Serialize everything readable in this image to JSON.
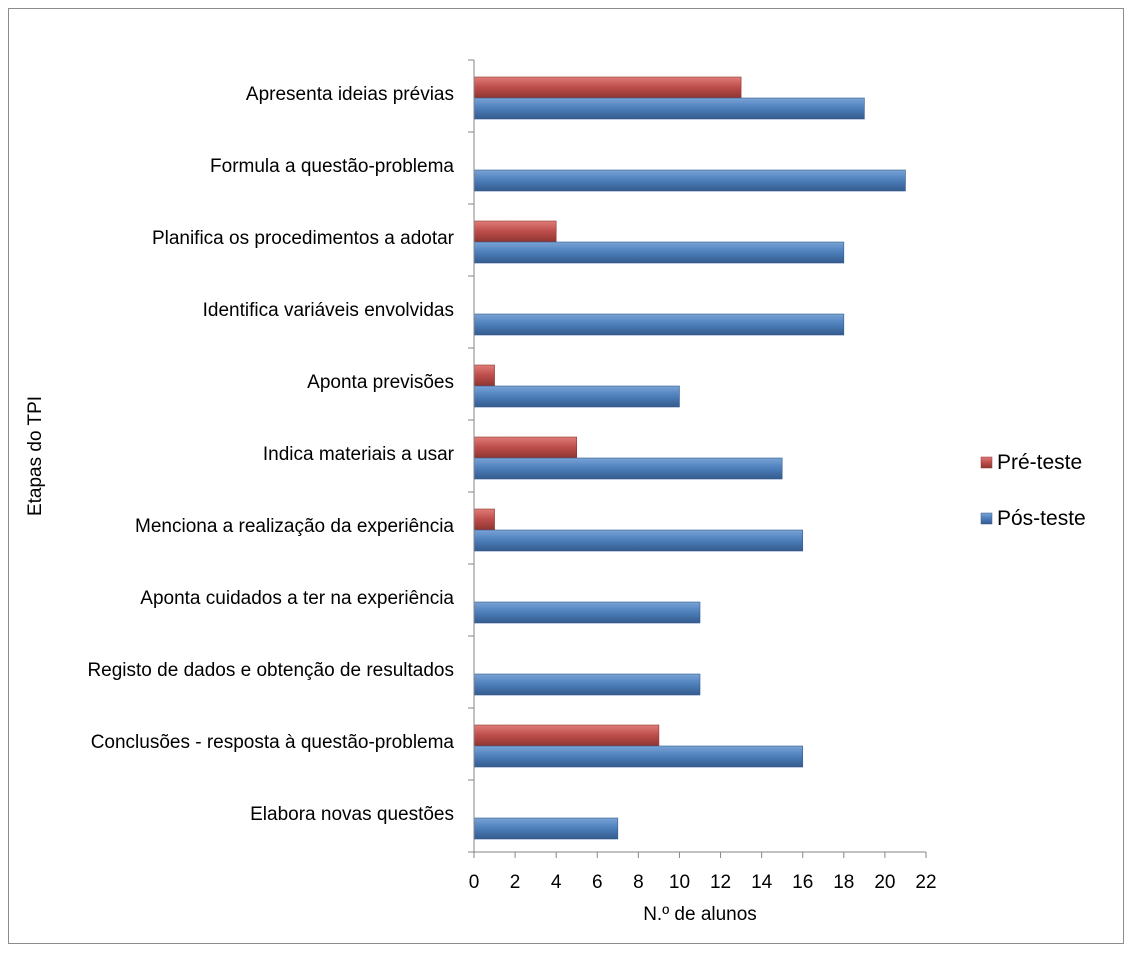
{
  "chart_data": {
    "type": "bar",
    "orientation": "horizontal",
    "categories": [
      "Apresenta ideias prévias",
      "Formula a questão-problema",
      "Planifica os procedimentos a adotar",
      "Identifica variáveis envolvidas",
      "Aponta previsões",
      "Indica materiais a usar",
      "Menciona a realização da experiência",
      "Aponta cuidados a ter na experiência",
      "Registo de dados e obtenção de resultados",
      "Conclusões - resposta à questão-problema",
      "Elabora novas questões"
    ],
    "series": [
      {
        "name": "Pré-teste",
        "color": "#c0504d",
        "values": [
          13,
          0,
          4,
          0,
          1,
          5,
          1,
          0,
          0,
          9,
          0
        ]
      },
      {
        "name": "Pós-teste",
        "color": "#4f81bd",
        "values": [
          19,
          21,
          18,
          18,
          10,
          15,
          16,
          11,
          11,
          16,
          7
        ]
      }
    ],
    "xlabel": "N.º de alunos",
    "ylabel": "Etapas do TPI",
    "xlim": [
      0,
      22
    ],
    "xticks": [
      "0",
      "2",
      "4",
      "6",
      "8",
      "10",
      "12",
      "14",
      "16",
      "18",
      "20",
      "22"
    ],
    "grid": false,
    "legend_position": "right"
  }
}
